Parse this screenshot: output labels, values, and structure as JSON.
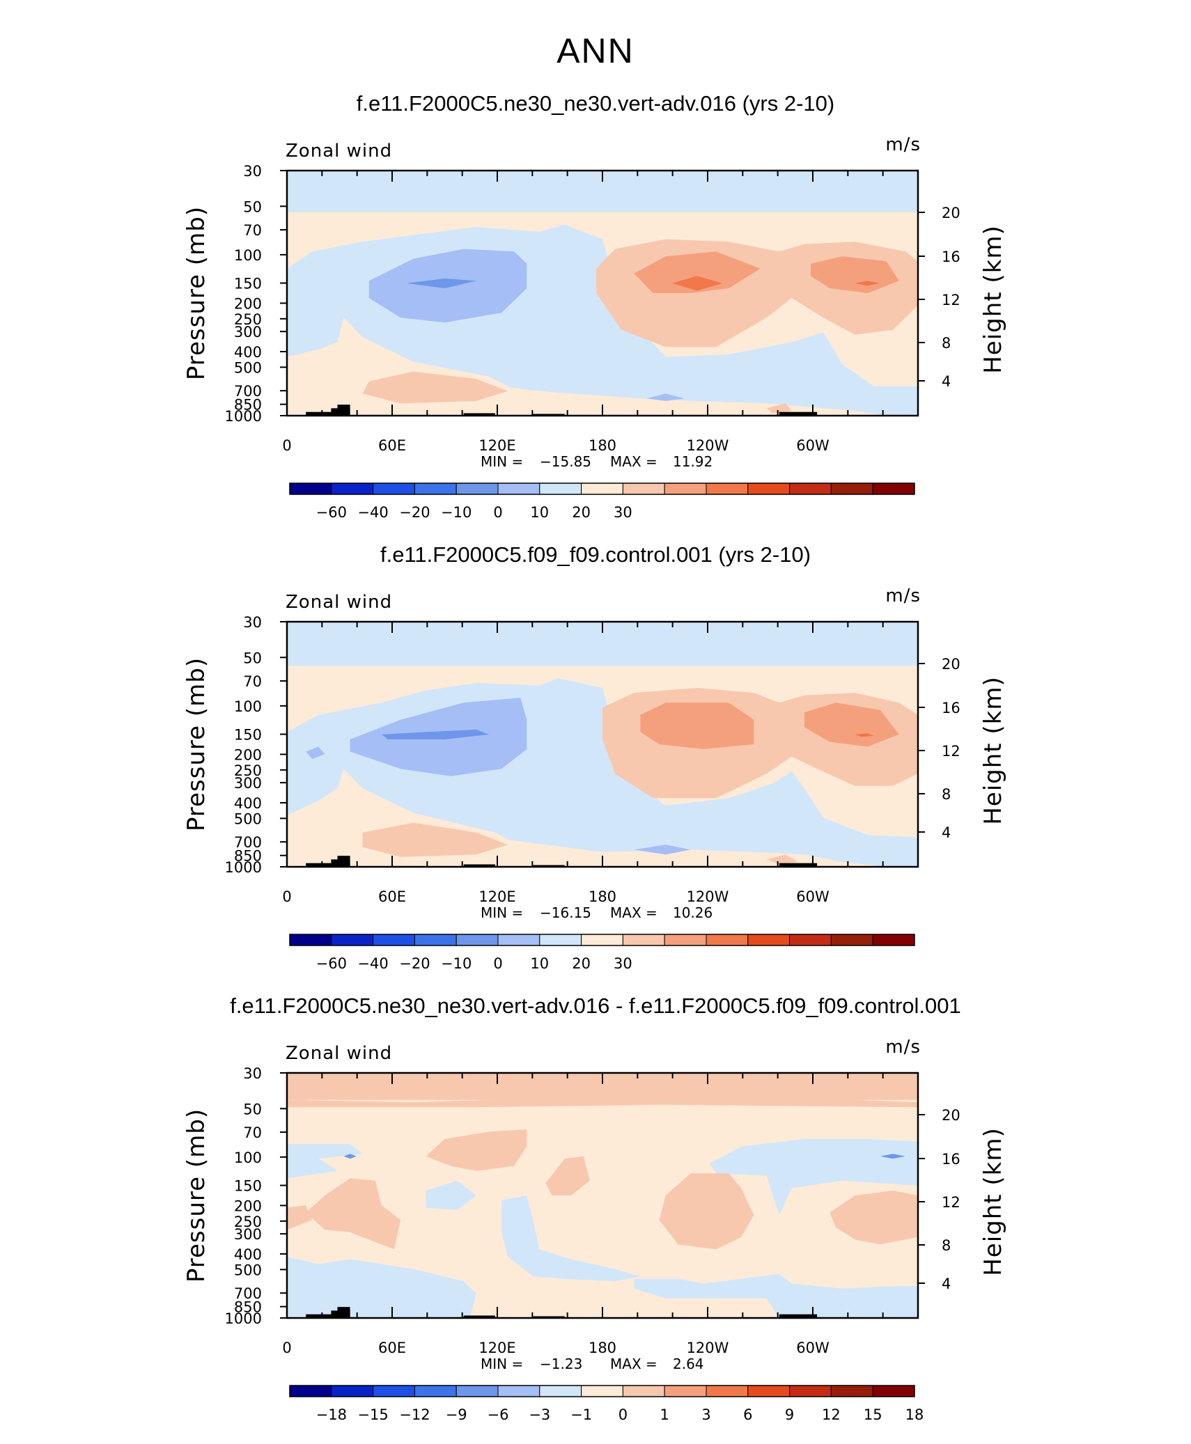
{
  "page_title": "ANN",
  "chart_data": [
    {
      "type": "contour",
      "title": "f.e11.F2000C5.ne30_ne30.vert-adv.016 (yrs 2-10)",
      "variable": "Zonal wind",
      "units": "m/s",
      "xlabel": "",
      "ylabel": "Pressure (mb)",
      "y2label": "Height (km)",
      "x_ticks": [
        "0",
        "60E",
        "120E",
        "180",
        "120W",
        "60W"
      ],
      "y_ticks": [
        "30",
        "50",
        "70",
        "100",
        "150",
        "200",
        "250",
        "300",
        "400",
        "500",
        "700",
        "850",
        "1000"
      ],
      "y2_ticks": [
        "20",
        "16",
        "12",
        "8",
        "4"
      ],
      "min_label": "MIN =",
      "min_value": "−15.85",
      "max_label": "MAX =",
      "max_value": "11.92",
      "colorbar_labels": [
        "−60",
        "−40",
        "−20",
        "−10",
        "0",
        "10",
        "20",
        "30"
      ]
    },
    {
      "type": "contour",
      "title": "f.e11.F2000C5.f09_f09.control.001 (yrs 2-10)",
      "variable": "Zonal wind",
      "units": "m/s",
      "xlabel": "",
      "ylabel": "Pressure (mb)",
      "y2label": "Height (km)",
      "x_ticks": [
        "0",
        "60E",
        "120E",
        "180",
        "120W",
        "60W"
      ],
      "y_ticks": [
        "30",
        "50",
        "70",
        "100",
        "150",
        "200",
        "250",
        "300",
        "400",
        "500",
        "700",
        "850",
        "1000"
      ],
      "y2_ticks": [
        "20",
        "16",
        "12",
        "8",
        "4"
      ],
      "min_label": "MIN =",
      "min_value": "−16.15",
      "max_label": "MAX =",
      "max_value": "10.26",
      "colorbar_labels": [
        "−60",
        "−40",
        "−20",
        "−10",
        "0",
        "10",
        "20",
        "30"
      ]
    },
    {
      "type": "contour",
      "title": "f.e11.F2000C5.ne30_ne30.vert-adv.016 - f.e11.F2000C5.f09_f09.control.001",
      "variable": "Zonal wind",
      "units": "m/s",
      "xlabel": "",
      "ylabel": "Pressure (mb)",
      "y2label": "Height (km)",
      "x_ticks": [
        "0",
        "60E",
        "120E",
        "180",
        "120W",
        "60W"
      ],
      "y_ticks": [
        "30",
        "50",
        "70",
        "100",
        "150",
        "200",
        "250",
        "300",
        "400",
        "500",
        "700",
        "850",
        "1000"
      ],
      "y2_ticks": [
        "20",
        "16",
        "12",
        "8",
        "4"
      ],
      "min_label": "MIN =",
      "min_value": "−1.23",
      "max_label": "MAX =",
      "max_value": "2.64",
      "colorbar_labels": [
        "−18",
        "−15",
        "−12",
        "−9",
        "−6",
        "−3",
        "−1",
        "0",
        "1",
        "3",
        "6",
        "9",
        "12",
        "15",
        "18"
      ]
    }
  ],
  "colormap": [
    "#00008b",
    "#0a23c8",
    "#1e50e6",
    "#3c73eb",
    "#6e96eb",
    "#a5bef5",
    "#d2e6fa",
    "#fdebd8",
    "#f8c8ae",
    "#f5a07d",
    "#f0784b",
    "#e64b1e",
    "#c32d14",
    "#961e0a",
    "#820000"
  ]
}
